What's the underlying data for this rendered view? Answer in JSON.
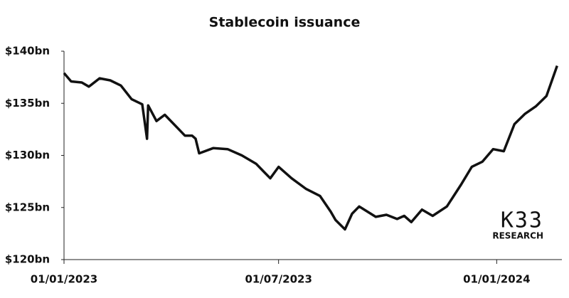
{
  "chart_data": {
    "type": "line",
    "title": "Stablecoin issuance",
    "x": [
      "2023-01-01",
      "2023-01-07",
      "2023-01-16",
      "2023-01-22",
      "2023-01-31",
      "2023-02-09",
      "2023-02-18",
      "2023-02-27",
      "2023-03-08",
      "2023-03-12",
      "2023-03-13",
      "2023-03-20",
      "2023-03-27",
      "2023-04-13",
      "2023-04-19",
      "2023-04-22",
      "2023-04-25",
      "2023-05-07",
      "2023-05-19",
      "2023-05-31",
      "2023-06-12",
      "2023-06-18",
      "2023-06-24",
      "2023-07-01",
      "2023-07-12",
      "2023-07-24",
      "2023-08-05",
      "2023-08-14",
      "2023-08-18",
      "2023-08-26",
      "2023-09-01",
      "2023-09-07",
      "2023-09-21",
      "2023-09-30",
      "2023-10-09",
      "2023-10-15",
      "2023-10-21",
      "2023-10-30",
      "2023-11-08",
      "2023-11-20",
      "2023-12-02",
      "2023-12-11",
      "2023-12-20",
      "2023-12-29",
      "2024-01-07",
      "2024-01-16",
      "2024-01-25",
      "2024-02-03",
      "2024-02-12",
      "2024-02-21"
    ],
    "values": [
      137.9,
      137.1,
      137.0,
      136.6,
      137.4,
      137.2,
      136.7,
      135.4,
      134.9,
      131.6,
      134.8,
      133.3,
      133.9,
      131.9,
      131.9,
      131.6,
      130.2,
      130.7,
      130.6,
      130.0,
      129.2,
      128.5,
      127.8,
      128.9,
      127.8,
      126.8,
      126.1,
      124.6,
      123.8,
      122.9,
      124.4,
      125.1,
      124.1,
      124.3,
      123.9,
      124.2,
      123.6,
      124.8,
      124.2,
      125.1,
      127.2,
      128.9,
      129.4,
      130.6,
      130.4,
      133.0,
      134.0,
      134.7,
      135.7,
      138.6
    ],
    "color": "#111111",
    "xlim": [
      "2023-01-01",
      "2024-02-25"
    ],
    "xticks": [
      {
        "value": "2023-01-01",
        "label": "01/01/2023"
      },
      {
        "value": "2023-07-01",
        "label": "01/07/2023"
      },
      {
        "value": "2024-01-01",
        "label": "01/01/2024"
      }
    ],
    "ylim": [
      120,
      140
    ],
    "yticks": [
      {
        "value": 120,
        "label": "$120bn"
      },
      {
        "value": 125,
        "label": "$125bn"
      },
      {
        "value": 130,
        "label": "$130bn"
      },
      {
        "value": 135,
        "label": "$135bn"
      },
      {
        "value": 140,
        "label": "$140bn"
      }
    ],
    "grid": false,
    "logo": {
      "name": "K33",
      "subtitle": "RESEARCH"
    }
  }
}
